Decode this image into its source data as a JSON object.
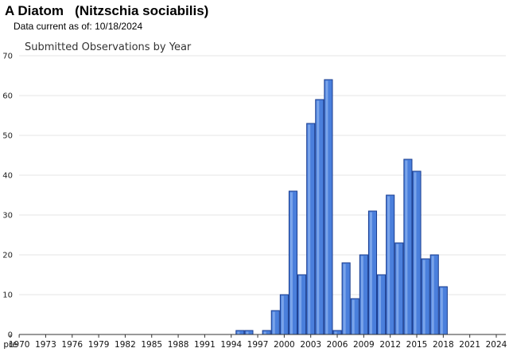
{
  "header": {
    "species_title": "A Diatom   (Nitzschia sociabilis)",
    "currency_label": "Data current as of:",
    "currency_date": "10/18/2024"
  },
  "chart_data": {
    "type": "bar",
    "title": "Submitted Observations by Year",
    "xlabel": "",
    "ylabel": "",
    "ylim": [
      0,
      70
    ],
    "yticks": [
      0,
      10,
      20,
      30,
      40,
      50,
      60,
      70
    ],
    "grid": true,
    "legend": "none",
    "bar_color": "#4a7fdc",
    "bar_edge_color": "#1a3d8f",
    "x_tick_labels": [
      "pre",
      "1970",
      "1973",
      "1976",
      "1979",
      "1982",
      "1985",
      "1988",
      "1991",
      "1994",
      "1997",
      "2000",
      "2003",
      "2006",
      "2009",
      "2012",
      "2015",
      "2018",
      "2021",
      "2024"
    ],
    "categories": [
      "1995",
      "1996",
      "1998",
      "1999",
      "2000",
      "2001",
      "2002",
      "2003",
      "2004",
      "2005",
      "2006",
      "2007",
      "2008",
      "2009",
      "2010",
      "2011",
      "2012",
      "2013",
      "2014",
      "2015",
      "2016",
      "2017",
      "2018"
    ],
    "values": [
      1,
      1,
      1,
      6,
      10,
      36,
      15,
      53,
      59,
      64,
      1,
      18,
      9,
      20,
      31,
      15,
      35,
      23,
      44,
      41,
      19,
      20,
      12
    ]
  }
}
